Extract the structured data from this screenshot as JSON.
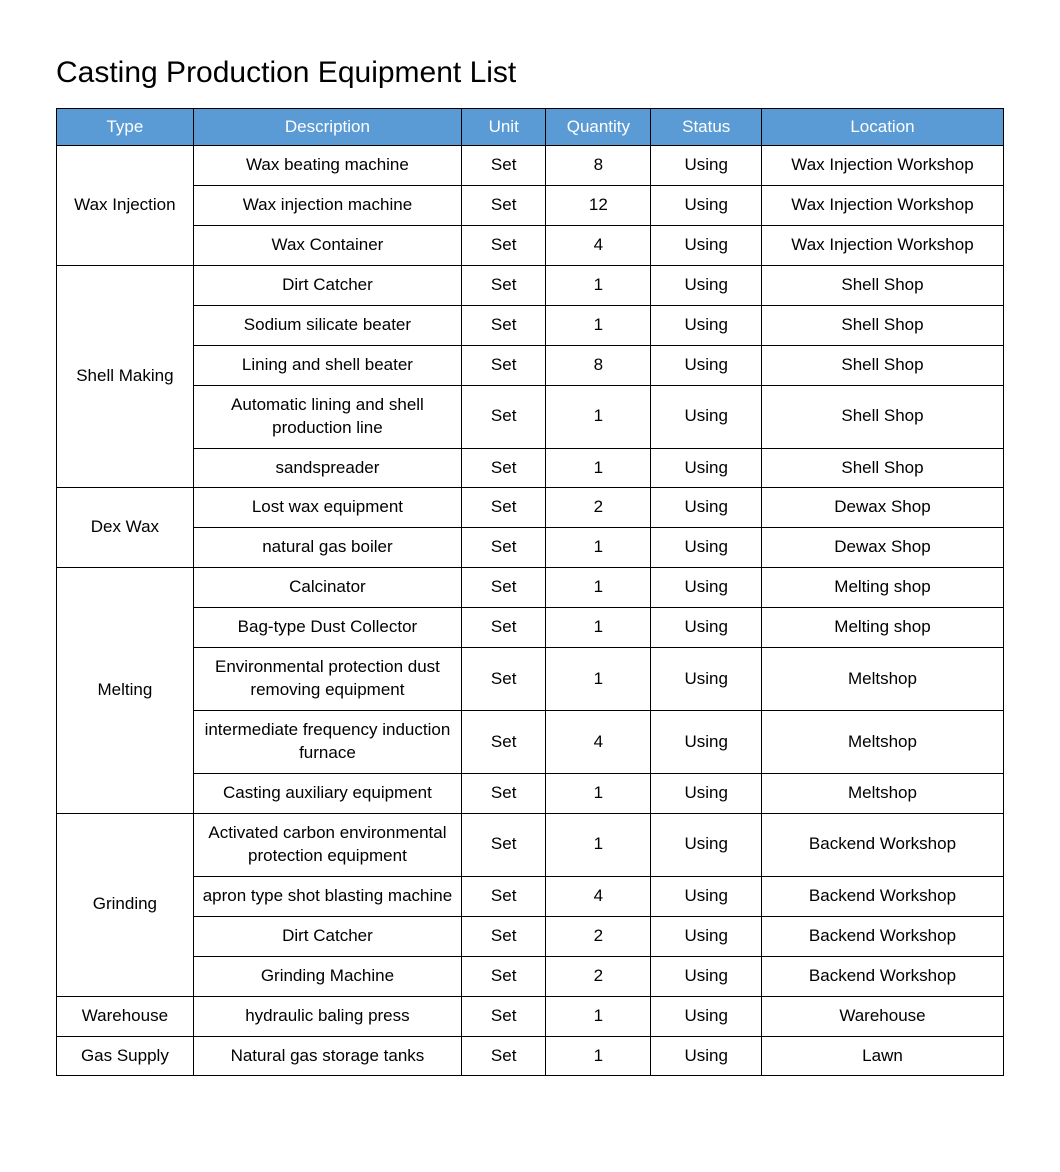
{
  "title": "Casting Production Equipment List",
  "table": {
    "header_bg": "#5b9bd5",
    "header_fg": "#ffffff",
    "border_color": "#000000",
    "columns": [
      "Type",
      "Description",
      "Unit",
      "Quantity",
      "Status",
      "Location"
    ],
    "groups": [
      {
        "type": "Wax Injection",
        "rows": [
          {
            "description": "Wax beating machine",
            "unit": "Set",
            "quantity": "8",
            "status": "Using",
            "location": "Wax Injection Workshop"
          },
          {
            "description": "Wax injection machine",
            "unit": "Set",
            "quantity": "12",
            "status": "Using",
            "location": "Wax Injection Workshop"
          },
          {
            "description": "Wax Container",
            "unit": "Set",
            "quantity": "4",
            "status": "Using",
            "location": "Wax Injection Workshop"
          }
        ]
      },
      {
        "type": "Shell Making",
        "rows": [
          {
            "description": "Dirt Catcher",
            "unit": "Set",
            "quantity": "1",
            "status": "Using",
            "location": "Shell Shop"
          },
          {
            "description": "Sodium silicate beater",
            "unit": "Set",
            "quantity": "1",
            "status": "Using",
            "location": "Shell Shop"
          },
          {
            "description": "Lining and shell beater",
            "unit": "Set",
            "quantity": "8",
            "status": "Using",
            "location": "Shell Shop"
          },
          {
            "description": "Automatic lining and shell production line",
            "unit": "Set",
            "quantity": "1",
            "status": "Using",
            "location": "Shell Shop"
          },
          {
            "description": "sandspreader",
            "unit": "Set",
            "quantity": "1",
            "status": "Using",
            "location": "Shell Shop"
          }
        ]
      },
      {
        "type": "Dex Wax",
        "rows": [
          {
            "description": "Lost wax equipment",
            "unit": "Set",
            "quantity": "2",
            "status": "Using",
            "location": "Dewax Shop"
          },
          {
            "description": "natural gas boiler",
            "unit": "Set",
            "quantity": "1",
            "status": "Using",
            "location": "Dewax Shop"
          }
        ]
      },
      {
        "type": "Melting",
        "rows": [
          {
            "description": "Calcinator",
            "unit": "Set",
            "quantity": "1",
            "status": "Using",
            "location": "Melting shop"
          },
          {
            "description": "Bag-type Dust Collector",
            "unit": "Set",
            "quantity": "1",
            "status": "Using",
            "location": "Melting shop"
          },
          {
            "description": "Environmental protection dust removing equipment",
            "unit": "Set",
            "quantity": "1",
            "status": "Using",
            "location": "Meltshop"
          },
          {
            "description": "intermediate frequency induction furnace",
            "unit": "Set",
            "quantity": "4",
            "status": "Using",
            "location": "Meltshop"
          },
          {
            "description": "Casting auxiliary equipment",
            "unit": "Set",
            "quantity": "1",
            "status": "Using",
            "location": "Meltshop"
          }
        ]
      },
      {
        "type": "Grinding",
        "rows": [
          {
            "description": "Activated carbon environmental protection equipment",
            "unit": "Set",
            "quantity": "1",
            "status": "Using",
            "location": "Backend Workshop"
          },
          {
            "description": "apron type shot blasting machine",
            "unit": "Set",
            "quantity": "4",
            "status": "Using",
            "location": "Backend Workshop"
          },
          {
            "description": "Dirt Catcher",
            "unit": "Set",
            "quantity": "2",
            "status": "Using",
            "location": "Backend Workshop"
          },
          {
            "description": "Grinding Machine",
            "unit": "Set",
            "quantity": "2",
            "status": "Using",
            "location": "Backend Workshop"
          }
        ]
      },
      {
        "type": "Warehouse",
        "rows": [
          {
            "description": "hydraulic baling press",
            "unit": "Set",
            "quantity": "1",
            "status": "Using",
            "location": "Warehouse"
          }
        ]
      },
      {
        "type": "Gas Supply",
        "rows": [
          {
            "description": "Natural gas storage tanks",
            "unit": "Set",
            "quantity": "1",
            "status": "Using",
            "location": "Lawn"
          }
        ]
      }
    ]
  }
}
